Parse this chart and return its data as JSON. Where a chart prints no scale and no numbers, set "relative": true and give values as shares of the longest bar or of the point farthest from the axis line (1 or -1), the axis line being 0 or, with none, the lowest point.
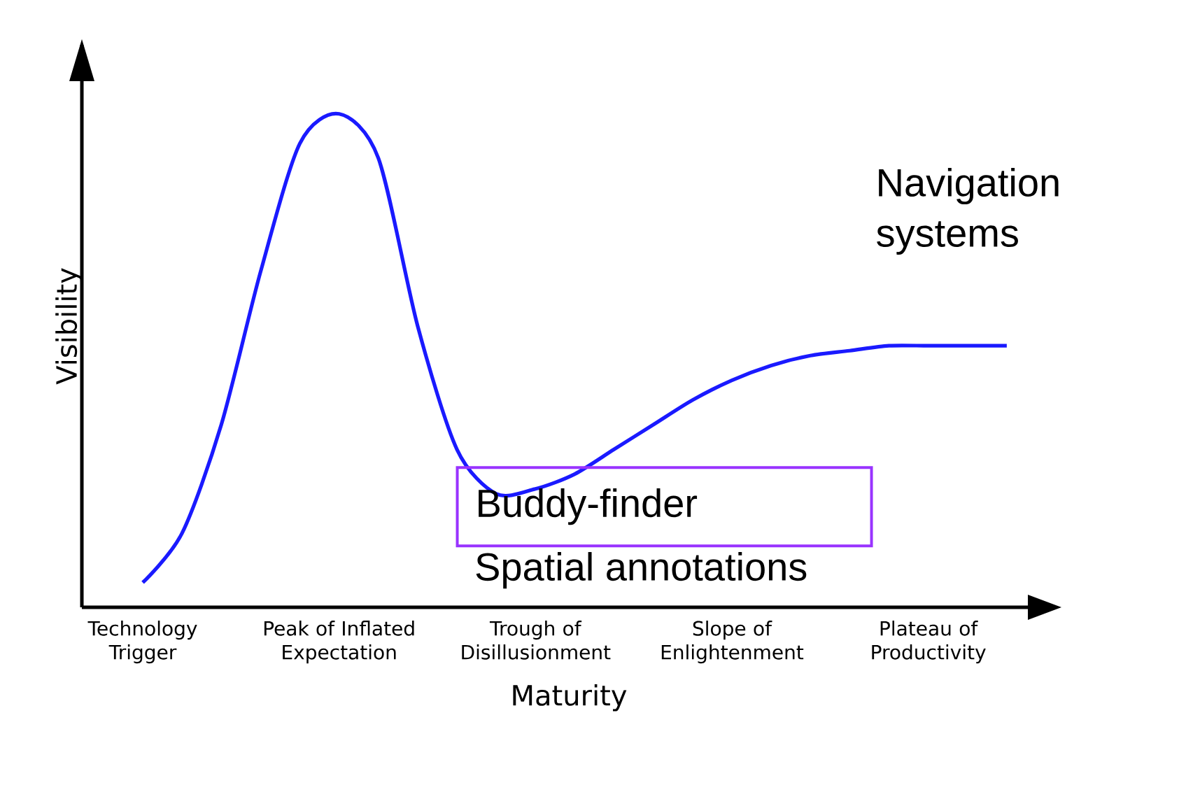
{
  "chart_data": {
    "type": "line",
    "relative": true,
    "xlabel": "Maturity",
    "ylabel": "Visibility",
    "categories": [
      "Technology Trigger",
      null,
      null,
      null,
      null,
      "Peak of Inflated Expectation",
      null,
      null,
      null,
      null,
      "Trough of Disillusionment",
      null,
      null,
      null,
      null,
      "Slope of Enlightenment",
      null,
      null,
      null,
      null,
      "Plateau of Productivity",
      null,
      null
    ],
    "series": [
      {
        "color": "#1a1aff",
        "values": [
          0.05,
          0.15,
          0.37,
          0.68,
          0.94,
          1,
          0.91,
          0.57,
          0.32,
          0.23,
          0.24,
          0.27,
          0.32,
          0.37,
          0.42,
          0.46,
          0.49,
          0.51,
          0.52,
          0.53,
          0.53,
          0.53,
          0.53
        ]
      }
    ],
    "annotations": [
      "Navigation systems",
      "Buddy-finder",
      "Spatial annotations"
    ]
  }
}
